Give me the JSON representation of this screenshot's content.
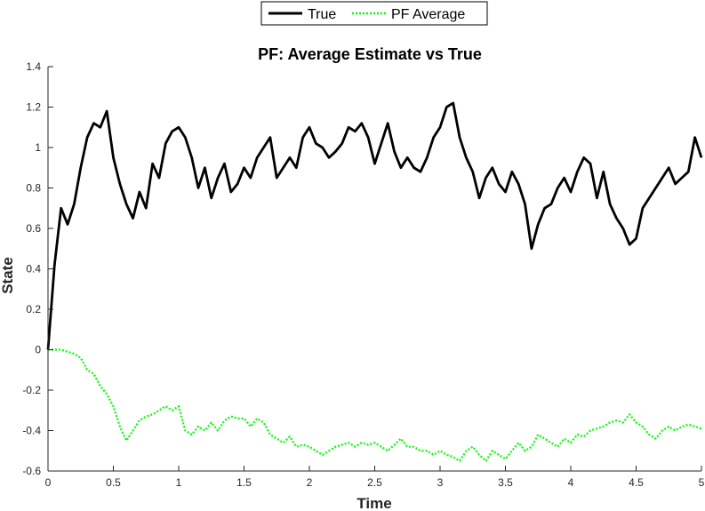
{
  "chart_data": {
    "type": "line",
    "title": "PF: Average Estimate vs True",
    "xlabel": "Time",
    "ylabel": "State",
    "xlim": [
      0,
      5
    ],
    "ylim": [
      -0.6,
      1.4
    ],
    "x_ticks": [
      "0",
      "0.5",
      "1",
      "1.5",
      "2",
      "2.5",
      "3",
      "3.5",
      "4",
      "4.5",
      "5"
    ],
    "y_ticks": [
      "-0.6",
      "-0.4",
      "-0.2",
      "0",
      "0.2",
      "0.4",
      "0.6",
      "0.8",
      "1",
      "1.2",
      "1.4"
    ],
    "grid": false,
    "legend_position": "top-center",
    "series": [
      {
        "name": "True",
        "color": "#000000",
        "style": "solid",
        "x": [
          0,
          0.05,
          0.1,
          0.15,
          0.2,
          0.25,
          0.3,
          0.35,
          0.4,
          0.45,
          0.5,
          0.55,
          0.6,
          0.65,
          0.7,
          0.75,
          0.8,
          0.85,
          0.9,
          0.95,
          1.0,
          1.05,
          1.1,
          1.15,
          1.2,
          1.25,
          1.3,
          1.35,
          1.4,
          1.45,
          1.5,
          1.55,
          1.6,
          1.65,
          1.7,
          1.75,
          1.8,
          1.85,
          1.9,
          1.95,
          2.0,
          2.05,
          2.1,
          2.15,
          2.2,
          2.25,
          2.3,
          2.35,
          2.4,
          2.45,
          2.5,
          2.55,
          2.6,
          2.65,
          2.7,
          2.75,
          2.8,
          2.85,
          2.9,
          2.95,
          3.0,
          3.05,
          3.1,
          3.15,
          3.2,
          3.25,
          3.3,
          3.35,
          3.4,
          3.45,
          3.5,
          3.55,
          3.6,
          3.65,
          3.7,
          3.75,
          3.8,
          3.85,
          3.9,
          3.95,
          4.0,
          4.05,
          4.1,
          4.15,
          4.2,
          4.25,
          4.3,
          4.35,
          4.4,
          4.45,
          4.5,
          4.55,
          4.6,
          4.65,
          4.7,
          4.75,
          4.8,
          4.85,
          4.9,
          4.95,
          5.0
        ],
        "values": [
          0.0,
          0.42,
          0.7,
          0.62,
          0.72,
          0.9,
          1.05,
          1.12,
          1.1,
          1.18,
          0.95,
          0.82,
          0.72,
          0.65,
          0.78,
          0.7,
          0.92,
          0.85,
          1.02,
          1.08,
          1.1,
          1.05,
          0.95,
          0.8,
          0.9,
          0.75,
          0.85,
          0.92,
          0.78,
          0.82,
          0.9,
          0.85,
          0.95,
          1.0,
          1.05,
          0.85,
          0.9,
          0.95,
          0.9,
          1.05,
          1.1,
          1.02,
          1.0,
          0.95,
          0.98,
          1.02,
          1.1,
          1.08,
          1.12,
          1.05,
          0.92,
          1.02,
          1.12,
          0.98,
          0.9,
          0.95,
          0.9,
          0.88,
          0.95,
          1.05,
          1.1,
          1.2,
          1.22,
          1.05,
          0.95,
          0.88,
          0.75,
          0.85,
          0.9,
          0.82,
          0.78,
          0.88,
          0.82,
          0.72,
          0.5,
          0.62,
          0.7,
          0.72,
          0.8,
          0.85,
          0.78,
          0.88,
          0.95,
          0.92,
          0.75,
          0.88,
          0.72,
          0.65,
          0.6,
          0.52,
          0.55,
          0.7,
          0.75,
          0.8,
          0.85,
          0.9,
          0.82,
          0.85,
          0.88,
          1.05,
          0.95
        ]
      },
      {
        "name": "PF Average",
        "color": "#00ff00",
        "style": "dotted",
        "x": [
          0,
          0.1,
          0.2,
          0.25,
          0.3,
          0.35,
          0.4,
          0.45,
          0.5,
          0.55,
          0.6,
          0.65,
          0.7,
          0.75,
          0.8,
          0.85,
          0.9,
          0.95,
          1.0,
          1.05,
          1.1,
          1.15,
          1.2,
          1.25,
          1.3,
          1.35,
          1.4,
          1.45,
          1.5,
          1.55,
          1.6,
          1.65,
          1.7,
          1.75,
          1.8,
          1.85,
          1.9,
          1.95,
          2.0,
          2.05,
          2.1,
          2.15,
          2.2,
          2.25,
          2.3,
          2.35,
          2.4,
          2.45,
          2.5,
          2.55,
          2.6,
          2.65,
          2.7,
          2.75,
          2.8,
          2.85,
          2.9,
          2.95,
          3.0,
          3.05,
          3.1,
          3.15,
          3.2,
          3.25,
          3.3,
          3.35,
          3.4,
          3.45,
          3.5,
          3.55,
          3.6,
          3.65,
          3.7,
          3.75,
          3.8,
          3.85,
          3.9,
          3.95,
          4.0,
          4.05,
          4.1,
          4.15,
          4.2,
          4.25,
          4.3,
          4.35,
          4.4,
          4.45,
          4.5,
          4.55,
          4.6,
          4.65,
          4.7,
          4.75,
          4.8,
          4.85,
          4.9,
          4.95,
          5.0
        ],
        "values": [
          0.0,
          0.0,
          -0.02,
          -0.04,
          -0.1,
          -0.12,
          -0.18,
          -0.22,
          -0.28,
          -0.38,
          -0.45,
          -0.4,
          -0.35,
          -0.33,
          -0.32,
          -0.3,
          -0.28,
          -0.3,
          -0.28,
          -0.4,
          -0.42,
          -0.38,
          -0.4,
          -0.36,
          -0.4,
          -0.35,
          -0.33,
          -0.34,
          -0.34,
          -0.38,
          -0.34,
          -0.36,
          -0.42,
          -0.44,
          -0.46,
          -0.43,
          -0.48,
          -0.47,
          -0.48,
          -0.5,
          -0.52,
          -0.5,
          -0.48,
          -0.47,
          -0.46,
          -0.48,
          -0.46,
          -0.47,
          -0.46,
          -0.48,
          -0.5,
          -0.47,
          -0.44,
          -0.48,
          -0.48,
          -0.5,
          -0.5,
          -0.52,
          -0.5,
          -0.52,
          -0.53,
          -0.55,
          -0.5,
          -0.48,
          -0.52,
          -0.55,
          -0.5,
          -0.52,
          -0.54,
          -0.5,
          -0.46,
          -0.5,
          -0.48,
          -0.42,
          -0.44,
          -0.46,
          -0.48,
          -0.44,
          -0.46,
          -0.42,
          -0.43,
          -0.4,
          -0.39,
          -0.38,
          -0.36,
          -0.35,
          -0.36,
          -0.32,
          -0.36,
          -0.38,
          -0.42,
          -0.44,
          -0.4,
          -0.38,
          -0.4,
          -0.38,
          -0.37,
          -0.38,
          -0.39
        ]
      }
    ]
  }
}
